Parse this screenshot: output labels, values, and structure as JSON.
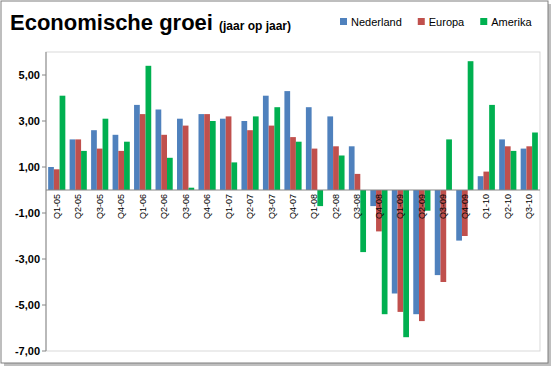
{
  "chart_data": {
    "type": "bar",
    "title": "Economische groei",
    "subtitle": "(jaar op jaar)",
    "categories": [
      "Q1-05",
      "Q2-05",
      "Q3-05",
      "Q4-05",
      "Q1-06",
      "Q2-06",
      "Q3-06",
      "Q4-06",
      "Q1-07",
      "Q2-07",
      "Q3-07",
      "Q4-07",
      "Q1-08",
      "Q2-08",
      "Q3-08",
      "Q4-08",
      "Q1-09",
      "Q2-09",
      "Q3-09",
      "Q4-09",
      "Q1-10",
      "Q2-10",
      "Q3-10"
    ],
    "series": [
      {
        "name": "Nederland",
        "color": "#4f81bd",
        "values": [
          1.0,
          2.2,
          2.6,
          2.4,
          3.7,
          3.5,
          3.1,
          3.3,
          3.1,
          3.0,
          4.1,
          4.3,
          3.6,
          3.2,
          1.9,
          -0.7,
          -4.5,
          -5.4,
          -3.7,
          -2.2,
          0.6,
          2.2,
          1.8
        ]
      },
      {
        "name": "Europa",
        "color": "#c0504d",
        "values": [
          0.9,
          2.2,
          1.8,
          1.7,
          3.3,
          2.4,
          2.8,
          3.3,
          3.2,
          2.6,
          2.8,
          2.3,
          1.8,
          1.9,
          0.7,
          -1.8,
          -5.3,
          -5.7,
          -4.0,
          -2.0,
          0.8,
          1.9,
          1.9
        ]
      },
      {
        "name": "Amerika",
        "color": "#00b050",
        "values": [
          4.1,
          1.7,
          3.1,
          2.1,
          5.4,
          1.4,
          0.1,
          3.0,
          1.2,
          3.2,
          3.6,
          2.1,
          -0.7,
          1.5,
          -2.7,
          -5.4,
          -6.4,
          -0.9,
          2.2,
          5.6,
          3.7,
          1.7,
          2.5
        ]
      }
    ],
    "ylim": [
      -7,
      6
    ],
    "yticks": [
      {
        "value": -7,
        "label": "-7,00"
      },
      {
        "value": -5,
        "label": "-5,00"
      },
      {
        "value": -3,
        "label": "-3,00"
      },
      {
        "value": -1,
        "label": "-1,00"
      },
      {
        "value": 1,
        "label": "1,00"
      },
      {
        "value": 3,
        "label": "3,00"
      },
      {
        "value": 5,
        "label": "5,00"
      }
    ],
    "grid": false,
    "legend": "top-right"
  }
}
